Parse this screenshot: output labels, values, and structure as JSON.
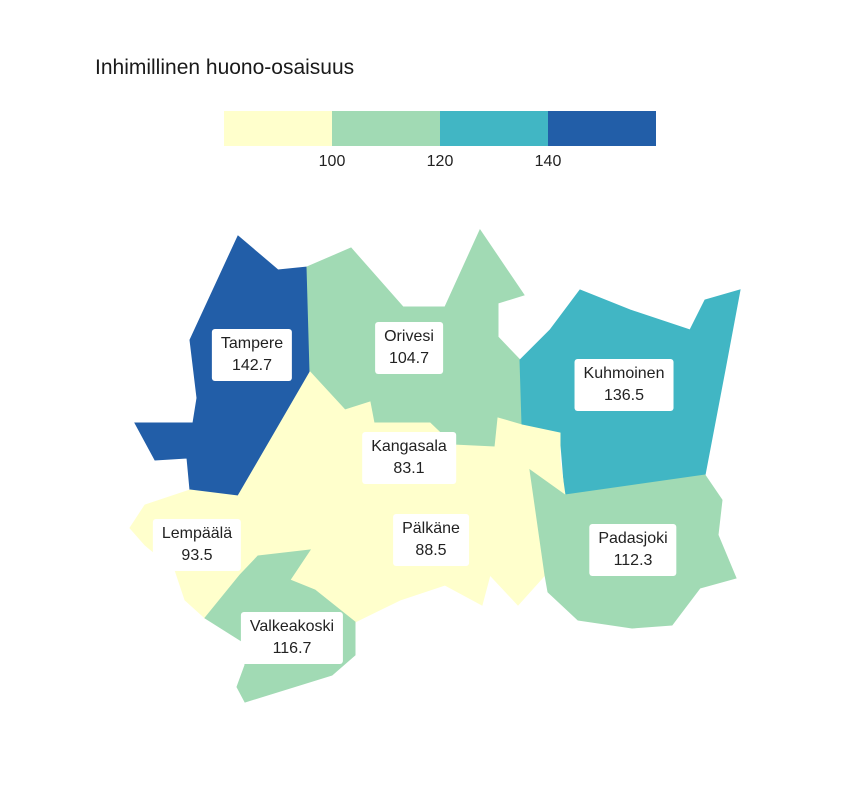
{
  "title": "Inhimillinen huono-osaisuus",
  "legend": {
    "colors": [
      "#ffffcc",
      "#a1dab4",
      "#41b6c4",
      "#225ea8"
    ],
    "breaks": [
      "100",
      "120",
      "140"
    ]
  },
  "regions": [
    {
      "name": "Tampere",
      "value": "142.7",
      "color": "#225ea8"
    },
    {
      "name": "Orivesi",
      "value": "104.7",
      "color": "#a1dab4"
    },
    {
      "name": "Kuhmoinen",
      "value": "136.5",
      "color": "#41b6c4"
    },
    {
      "name": "Kangasala",
      "value": "83.1",
      "color": "#ffffcc"
    },
    {
      "name": "Lempäälä",
      "value": "93.5",
      "color": "#ffffcc"
    },
    {
      "name": "Pälkäne",
      "value": "88.5",
      "color": "#ffffcc"
    },
    {
      "name": "Padasjoki",
      "value": "112.3",
      "color": "#a1dab4"
    },
    {
      "name": "Valkeakoski",
      "value": "116.7",
      "color": "#a1dab4"
    }
  ]
}
